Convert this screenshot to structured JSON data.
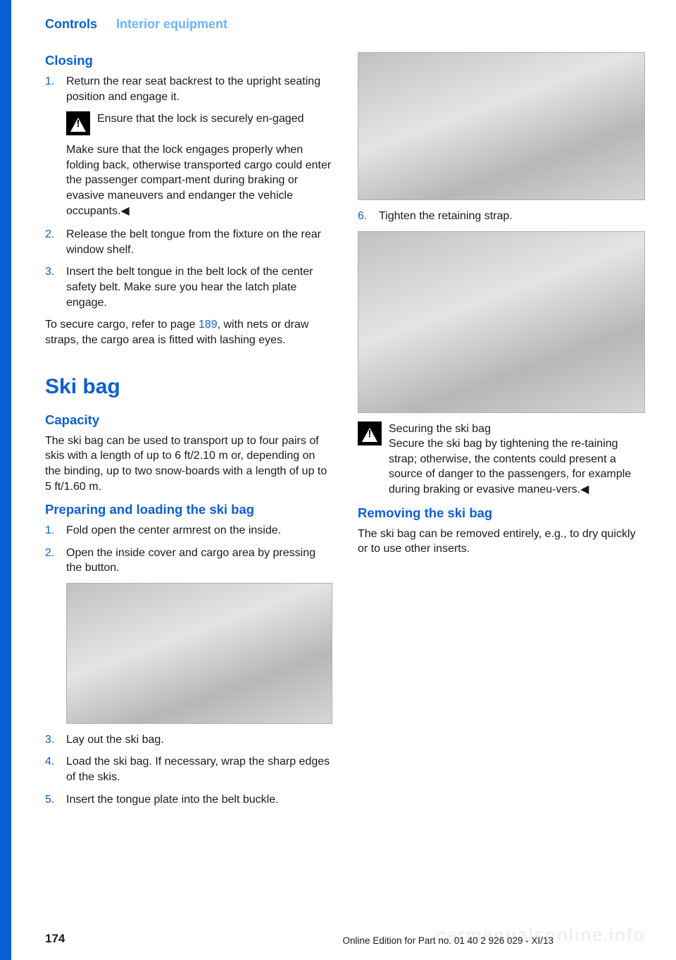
{
  "header": {
    "chapter": "Controls",
    "section": "Interior equipment"
  },
  "left": {
    "closing_title": "Closing",
    "step1_num": "1.",
    "step1": "Return the rear seat backrest to the upright seating position and engage it.",
    "warn1_title": "Ensure that the lock is securely en‐gaged",
    "warn1_body": "Make sure that the lock engages properly when folding back, otherwise transported cargo could enter the passenger compart‐ment during braking or evasive maneuvers and endanger the vehicle occupants.◀",
    "step2_num": "2.",
    "step2": "Release the belt tongue from the fixture on the rear window shelf.",
    "step3_num": "3.",
    "step3": "Insert the belt tongue in the belt lock of the center safety belt. Make sure you hear the latch plate engage.",
    "secure_p1": "To secure cargo, refer to page ",
    "secure_link": "189",
    "secure_p2": ", with nets or draw straps, the cargo area is fitted with lashing eyes.",
    "ski_title": "Ski bag",
    "capacity_title": "Capacity",
    "capacity_body": "The ski bag can be used to transport up to four pairs of skis with a length of up to 6 ft/2.10 m or, depending on the binding, up to two snow‐boards with a length of up to 5 ft/1.60 m.",
    "prep_title": "Preparing and loading the ski bag",
    "pstep1_num": "1.",
    "pstep1": "Fold open the center armrest on the inside.",
    "pstep2_num": "2.",
    "pstep2": "Open the inside cover and cargo area by pressing the button.",
    "pstep3_num": "3.",
    "pstep3": "Lay out the ski bag."
  },
  "right": {
    "step4_num": "4.",
    "step4": "Load the ski bag. If necessary, wrap the sharp edges of the skis.",
    "step5_num": "5.",
    "step5": "Insert the tongue plate into the belt buckle.",
    "step6_num": "6.",
    "step6": "Tighten the retaining strap.",
    "warn2_title": "Securing the ski bag",
    "warn2_body": "Secure the ski bag by tightening the re‐taining strap; otherwise, the contents could present a source of danger to the passengers, for example during braking or evasive maneu‐vers.◀",
    "removing_title": "Removing the ski bag",
    "removing_body": "The ski bag can be removed entirely, e.g., to dry quickly or to use other inserts."
  },
  "footer": {
    "page": "174",
    "edition": "Online Edition for Part no. 01 40 2 926 029 - XI/13",
    "watermark": "carmanualsonline.info"
  },
  "colors": {
    "accent": "#0b5fd6",
    "accent_light": "#6bb3ff"
  }
}
